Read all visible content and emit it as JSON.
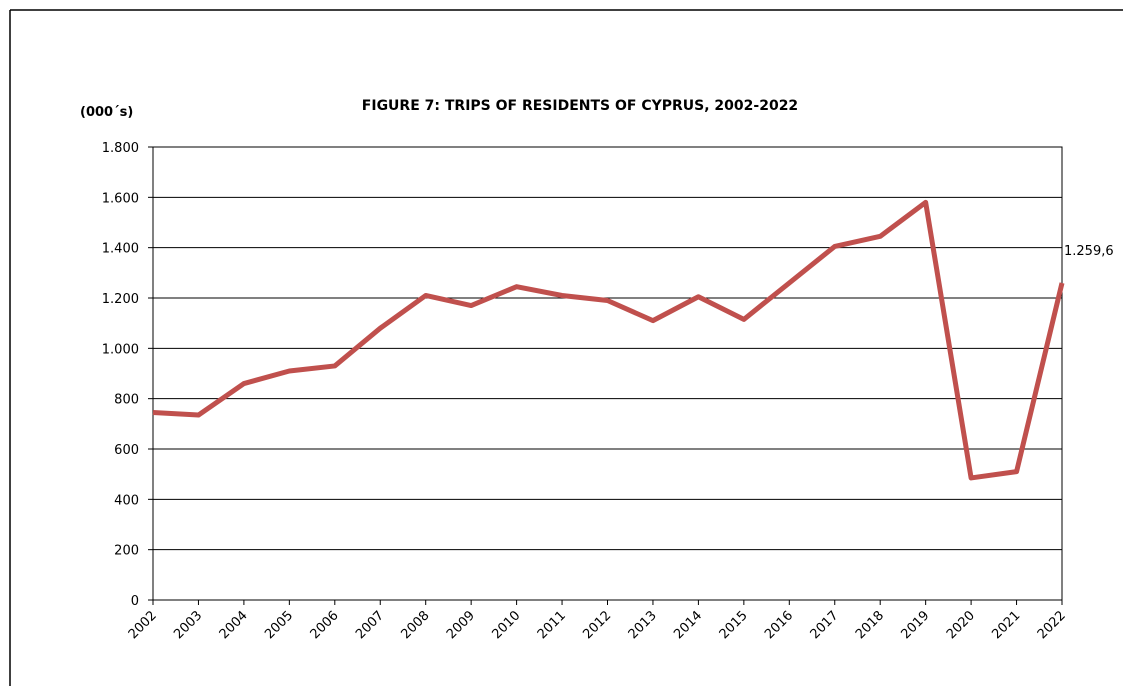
{
  "chart_data": {
    "type": "line",
    "title": "FIGURE 7: TRIPS OF RESIDENTS OF CYPRUS, 2002-2022",
    "y_label": "(000´s)",
    "categories": [
      "2002",
      "2003",
      "2004",
      "2005",
      "2006",
      "2007",
      "2008",
      "2009",
      "2010",
      "2011",
      "2012",
      "2013",
      "2014",
      "2015",
      "2016",
      "2017",
      "2018",
      "2019",
      "2020",
      "2021",
      "2022"
    ],
    "series": [
      {
        "name": "Trips",
        "color": "#c0504d",
        "values": [
          745,
          735,
          860,
          910,
          930,
          1080,
          1210,
          1170,
          1245,
          1210,
          1190,
          1110,
          1205,
          1115,
          1260,
          1405,
          1445,
          1580,
          485,
          510,
          1259.6
        ],
        "value_labels": [
          null,
          null,
          null,
          null,
          null,
          null,
          null,
          null,
          null,
          null,
          null,
          null,
          null,
          null,
          null,
          null,
          null,
          null,
          null,
          null,
          "1.259,6"
        ]
      }
    ],
    "ylim": [
      0,
      1800
    ],
    "yticks": [
      0,
      200,
      400,
      600,
      800,
      {
        "value": 1000,
        "label": "1.000"
      },
      {
        "value": 1200,
        "label": "1.200"
      },
      {
        "value": 1400,
        "label": "1.400"
      },
      {
        "value": 1600,
        "label": "1.600"
      },
      {
        "value": 1800,
        "label": "1.800"
      }
    ],
    "grid": true
  }
}
